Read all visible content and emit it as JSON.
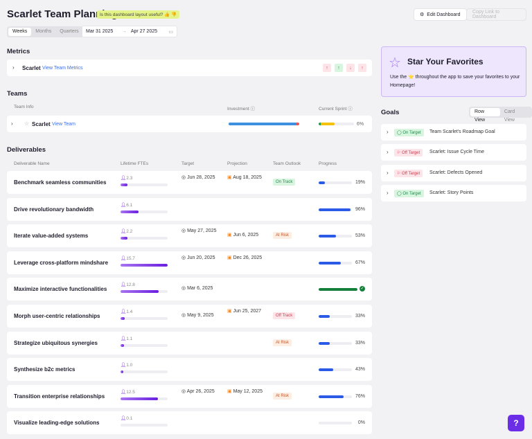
{
  "header": {
    "title": "Scarlet Team Planning",
    "feedback": "Is this dashboard layout useful? 👍 👎",
    "edit_label": "Edit Dashboard",
    "copy_label": "Copy Link to Dashboard"
  },
  "period": {
    "options": [
      "Weeks",
      "Months",
      "Quarters"
    ],
    "selected": "Weeks",
    "start": "Mar 31 2025",
    "end": "Apr 27 2025"
  },
  "metrics": {
    "title": "Metrics",
    "team": "Scarlet",
    "link": "View Team Metrics",
    "arrows": [
      {
        "dir": "↑",
        "color": "#e0445a",
        "bg": "#fde4e8"
      },
      {
        "dir": "↑",
        "color": "#1f8a4c",
        "bg": "#d8f5e0"
      },
      {
        "dir": "↓",
        "color": "#e0445a",
        "bg": "#fde4e8"
      },
      {
        "dir": "↑",
        "color": "#e0445a",
        "bg": "#fde4e8"
      }
    ]
  },
  "teams": {
    "title": "Teams",
    "col_info": "Team Info",
    "col_investment": "Investment ⓘ",
    "col_sprint": "Current Sprint ⓘ",
    "team": "Scarlet",
    "link": "View Team",
    "sprint_pct": "6%",
    "sprint_progress": 6
  },
  "deliverables": {
    "title": "Deliverables",
    "columns": [
      "Deliverable Name",
      "Lifetime FTEs",
      "Target",
      "Projection",
      "Team Outlook",
      "Progress"
    ],
    "rows": [
      {
        "name": "Benchmark seamless communities",
        "fte": 2.3,
        "fte_label": "2.3",
        "target": "Jun 28, 2025",
        "projection": "Aug 18, 2025",
        "outlook": "On Track",
        "progress": 19,
        "progress_label": "19%"
      },
      {
        "name": "Drive revolutionary bandwidth",
        "fte": 6.1,
        "fte_label": "6.1",
        "target": "",
        "projection": "",
        "outlook": "",
        "progress": 96,
        "progress_label": "96%"
      },
      {
        "name": "Iterate value-added systems",
        "fte": 2.2,
        "fte_label": "2.2",
        "target": "May 27, 2025",
        "projection": "Jun 6, 2025",
        "outlook": "At Risk",
        "progress": 53,
        "progress_label": "53%"
      },
      {
        "name": "Leverage cross-platform mindshare",
        "fte": 15.7,
        "fte_label": "15.7",
        "target": "Jun 20, 2025",
        "projection": "Dec 26, 2025",
        "outlook": "",
        "progress": 67,
        "progress_label": "67%"
      },
      {
        "name": "Maximize interactive functionalities",
        "fte": 12.8,
        "fte_label": "12.8",
        "target": "Mar 6, 2025",
        "projection": "",
        "outlook": "",
        "progress": 100,
        "progress_label": "",
        "complete": true
      },
      {
        "name": "Morph user-centric relationships",
        "fte": 1.4,
        "fte_label": "1.4",
        "target": "May 9, 2025",
        "projection": "Jun 25, 2027",
        "outlook": "Off Track",
        "progress": 33,
        "progress_label": "33%"
      },
      {
        "name": "Strategize ubiquitous synergies",
        "fte": 1.1,
        "fte_label": "1.1",
        "target": "",
        "projection": "",
        "outlook": "At Risk",
        "progress": 33,
        "progress_label": "33%"
      },
      {
        "name": "Synthesize b2c metrics",
        "fte": 1.0,
        "fte_label": "1.0",
        "target": "",
        "projection": "",
        "outlook": "",
        "progress": 43,
        "progress_label": "43%"
      },
      {
        "name": "Transition enterprise relationships",
        "fte": 12.5,
        "fte_label": "12.5",
        "target": "Apr 26, 2025",
        "projection": "May 12, 2025",
        "outlook": "At Risk",
        "progress": 76,
        "progress_label": "76%"
      },
      {
        "name": "Visualize leading-edge solutions",
        "fte": 0.1,
        "fte_label": "0.1",
        "target": "",
        "projection": "",
        "outlook": "",
        "progress": 0,
        "progress_label": "0%"
      }
    ]
  },
  "favorites": {
    "title": "Star Your Favorites",
    "text": "Use the ⭐ throughout the app to save your favorites to your Homepage!"
  },
  "goals": {
    "title": "Goals",
    "views": [
      "Row View",
      "Card View"
    ],
    "selected": "Row View",
    "items": [
      {
        "status": "On Target",
        "name": "Team Scarlet's Roadmap Goal"
      },
      {
        "status": "Off Target",
        "name": "Scarlet: Issue Cycle Time"
      },
      {
        "status": "Off Target",
        "name": "Scarlet: Defects Opened"
      },
      {
        "status": "On Target",
        "name": "Scarlet: Story Points"
      }
    ]
  },
  "help": {
    "icon": "question-icon",
    "label": "?"
  }
}
